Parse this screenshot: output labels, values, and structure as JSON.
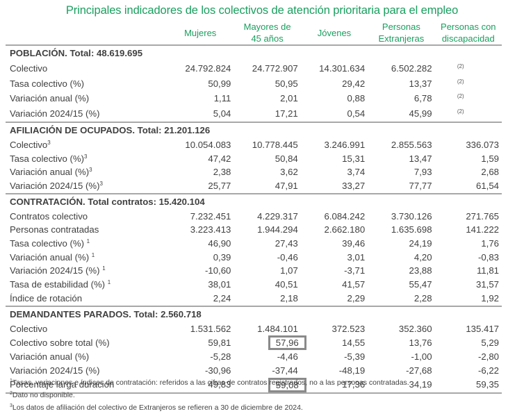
{
  "title": "Principales indicadores de los colectivos de atención prioritaria para el empleo",
  "columns": [
    {
      "line1": "Mujeres",
      "line2": ""
    },
    {
      "line1": "Mayores de",
      "line2": "45 años"
    },
    {
      "line1": "Jóvenes",
      "line2": ""
    },
    {
      "line1": "Personas",
      "line2": "Extranjeras"
    },
    {
      "line1": "Personas con",
      "line2": "discapacidad"
    }
  ],
  "sections": [
    {
      "heading": "POBLACIÓN. Total: 48.619.695",
      "rows": [
        {
          "label": "Colectivo",
          "sup": "",
          "values": [
            "24.792.824",
            "24.772.907",
            "14.301.634",
            "6.502.282",
            "(2)"
          ]
        },
        {
          "label": "Tasa colectivo (%)",
          "sup": "",
          "values": [
            "50,99",
            "50,95",
            "29,42",
            "13,37",
            "(2)"
          ]
        },
        {
          "label": "Variación anual (%)",
          "sup": "",
          "values": [
            "1,11",
            "2,01",
            "0,88",
            "6,78",
            "(2)"
          ]
        },
        {
          "label": "Variación 2024/15 (%)",
          "sup": "",
          "values": [
            "5,04",
            "17,21",
            "0,54",
            "45,99",
            "(2)"
          ]
        }
      ]
    },
    {
      "heading": "AFILIACIÓN DE OCUPADOS. Total: 21.201.126",
      "rows": [
        {
          "label": "Colectivo",
          "sup": "3",
          "values": [
            "10.054.083",
            "10.778.445",
            "3.246.991",
            "2.855.563",
            "336.073"
          ]
        },
        {
          "label": "Tasa colectivo (%)",
          "sup": "3",
          "values": [
            "47,42",
            "50,84",
            "15,31",
            "13,47",
            "1,59"
          ]
        },
        {
          "label": "Variación anual (%)",
          "sup": "3",
          "values": [
            "2,38",
            "3,62",
            "3,74",
            "7,93",
            "2,68"
          ]
        },
        {
          "label": "Variación 2024/15 (%)",
          "sup": "3",
          "values": [
            "25,77",
            "47,91",
            "33,27",
            "77,77",
            "61,54"
          ]
        }
      ]
    },
    {
      "heading": "CONTRATACIÓN. Total contratos: 15.420.104",
      "rows": [
        {
          "label": "Contratos colectivo",
          "sup": "",
          "values": [
            "7.232.451",
            "4.229.317",
            "6.084.242",
            "3.730.126",
            "271.765"
          ]
        },
        {
          "label": "Personas contratadas",
          "sup": "",
          "values": [
            "3.223.413",
            "1.944.294",
            "2.662.180",
            "1.635.698",
            "141.222"
          ]
        },
        {
          "label": "Tasa colectivo (%)",
          "sup": "1",
          "values": [
            "46,90",
            "27,43",
            "39,46",
            "24,19",
            "1,76"
          ]
        },
        {
          "label": "Variación anual (%)",
          "sup": "1",
          "values": [
            "0,39",
            "-0,46",
            "3,01",
            "4,20",
            "-0,83"
          ]
        },
        {
          "label": "Variación 2024/15 (%)",
          "sup": "1",
          "values": [
            "-10,60",
            "1,07",
            "-3,71",
            "23,88",
            "11,81"
          ]
        },
        {
          "label": "Tasa de estabilidad (%)",
          "sup": "1",
          "values": [
            "38,01",
            "40,51",
            "41,57",
            "55,47",
            "31,57"
          ]
        },
        {
          "label": "Índice de rotación",
          "sup": "",
          "values": [
            "2,24",
            "2,18",
            "2,29",
            "2,28",
            "1,92"
          ]
        }
      ]
    },
    {
      "heading": "DEMANDANTES PARADOS. Total: 2.560.718",
      "rows": [
        {
          "label": "Colectivo",
          "sup": "",
          "values": [
            "1.531.562",
            "1.484.101",
            "372.523",
            "352.360",
            "135.417"
          ]
        },
        {
          "label": "Colectivo sobre total (%)",
          "sup": "",
          "values": [
            "59,81",
            "57,96",
            "14,55",
            "13,76",
            "5,29"
          ],
          "highlight_col": 1
        },
        {
          "label": "Variación anual (%)",
          "sup": "",
          "values": [
            "-5,28",
            "-4,46",
            "-5,39",
            "-1,00",
            "-2,80"
          ]
        },
        {
          "label": "Variación 2024/15 (%)",
          "sup": "",
          "values": [
            "-30,96",
            "-37,44",
            "-48,19",
            "-27,68",
            "-6,22"
          ]
        },
        {
          "label": "Porcentaje larga duración",
          "sup": "",
          "values": [
            "49,83",
            "59,08",
            "17,36",
            "34,19",
            "59,35"
          ],
          "highlight_col": 1
        }
      ]
    }
  ],
  "footnotes": [
    {
      "num": "1",
      "text": "Tasas, variaciones e índices de contratación: referidos a las cifras de contratos registrados, no a las personas contratadas."
    },
    {
      "num": "2",
      "text": "Dato no disponible."
    },
    {
      "num": "3",
      "text": "Los datos de afiliación del colectivo de Extranjeros se refieren a 30 de diciembre de 2024."
    }
  ],
  "colors": {
    "accent": "#1a9f5f",
    "text": "#404040",
    "rule": "#a8a8a8",
    "highlight_box": "#8a8a8a"
  }
}
